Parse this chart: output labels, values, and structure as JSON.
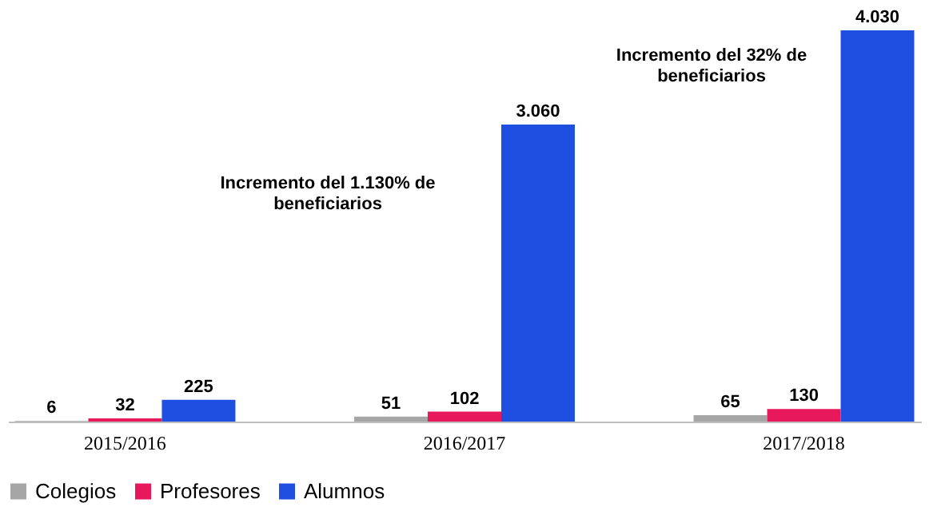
{
  "chart_data": {
    "type": "bar",
    "categories": [
      "2015/2016",
      "2016/2017",
      "2017/2018"
    ],
    "series": [
      {
        "name": "Colegios",
        "color": "#a6a6a6",
        "values": [
          6,
          51,
          65
        ],
        "value_labels": [
          "6",
          "51",
          "65"
        ]
      },
      {
        "name": "Profesores",
        "color": "#e8185c",
        "values": [
          32,
          102,
          130
        ],
        "value_labels": [
          "32",
          "102",
          "130"
        ]
      },
      {
        "name": "Alumnos",
        "color": "#1f4fe0",
        "values": [
          225,
          3060,
          4030
        ],
        "value_labels": [
          "225",
          "3.060",
          "4.030"
        ]
      }
    ],
    "annotations": [
      "Incremento del 1.130% de\nbeneficiarios",
      "Incremento del 32% de\nbeneficiarios"
    ],
    "legend": "bottom",
    "grid": false
  }
}
